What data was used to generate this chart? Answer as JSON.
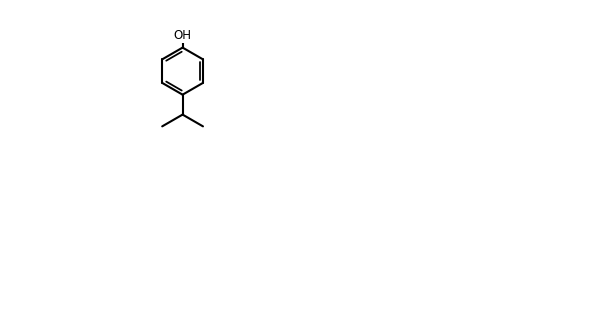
{
  "bg_color": "#ffffff",
  "line_color": "#000000",
  "line_width": 1.5,
  "font_size": 9,
  "figsize": [
    6.06,
    3.17
  ],
  "dpi": 100
}
